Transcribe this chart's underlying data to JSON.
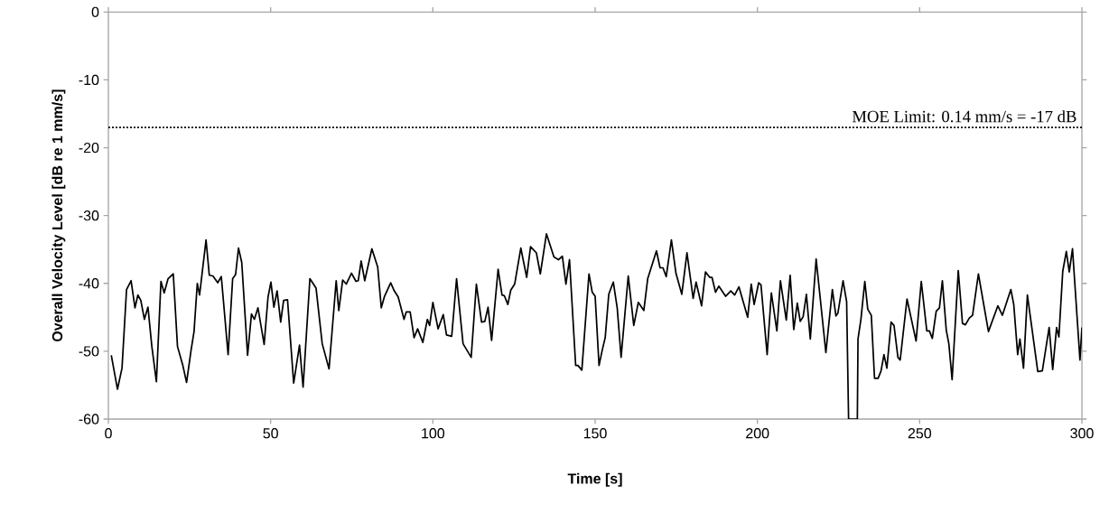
{
  "chart_data": {
    "type": "line",
    "xlabel": "Time [s]",
    "ylabel": "Overall Velocity Level [dB re 1 mm/s]",
    "xlim": [
      0,
      300
    ],
    "ylim": [
      -60,
      0
    ],
    "xticks": [
      0,
      50,
      100,
      150,
      200,
      250,
      300
    ],
    "yticks": [
      -60,
      -50,
      -40,
      -30,
      -20,
      -10,
      0
    ],
    "grid": false,
    "marker": "none",
    "line_style": "solid",
    "ref_lines": [
      {
        "axis": "y",
        "value": -17,
        "label": "MOE Limit: 0.14 mm/s = -17 dB",
        "color": "#000000",
        "line_style": "dotted"
      }
    ],
    "series": [
      {
        "color": "#000000",
        "x": [
          0.9,
          2.8,
          4.2,
          5.6,
          7.0,
          8.2,
          9.1,
          10.0,
          11.1,
          12.2,
          13.4,
          14.8,
          16.2,
          17.2,
          18.4,
          20.0,
          21.3,
          22.9,
          24.1,
          25.5,
          26.4,
          27.4,
          28.1,
          30.1,
          31.1,
          32.2,
          33.7,
          34.8,
          36.9,
          38.3,
          39.2,
          40.1,
          41.1,
          42.9,
          44.1,
          45.0,
          46.1,
          48.0,
          49.2,
          50.1,
          51.0,
          52.0,
          53.1,
          54.0,
          55.2,
          57.1,
          58.9,
          60.0,
          62.1,
          64.0,
          65.9,
          68.0,
          70.2,
          71.0,
          72.2,
          73.3,
          74.9,
          76.3,
          77.0,
          77.9,
          79.0,
          81.2,
          83.0,
          84.1,
          85.1,
          87.0,
          88.1,
          89.3,
          91.1,
          91.8,
          93.0,
          94.2,
          95.3,
          96.9,
          98.3,
          99.0,
          100.0,
          101.6,
          103.2,
          104.2,
          105.8,
          107.3,
          109.3,
          111.8,
          113.4,
          115.0,
          116.0,
          117.0,
          118.1,
          120.1,
          121.3,
          122.0,
          123.1,
          124.0,
          125.2,
          127.1,
          128.9,
          130.1,
          131.9,
          133.1,
          135.0,
          137.3,
          138.7,
          139.9,
          141.0,
          142.1,
          144.0,
          144.7,
          145.9,
          148.1,
          149.1,
          150.0,
          151.2,
          152.2,
          153.1,
          154.2,
          155.6,
          156.8,
          158.0,
          160.2,
          161.9,
          163.3,
          165.0,
          166.2,
          168.9,
          170.0,
          170.9,
          171.9,
          173.5,
          174.9,
          176.7,
          178.3,
          180.2,
          181.1,
          182.8,
          184.0,
          185.3,
          186.0,
          187.1,
          188.1,
          190.2,
          191.8,
          193.0,
          194.3,
          197.0,
          198.1,
          199.0,
          200.4,
          201.1,
          203.0,
          204.3,
          206.0,
          207.1,
          208.9,
          210.1,
          211.2,
          212.3,
          213.2,
          214.1,
          215.1,
          216.3,
          218.1,
          221.1,
          223.1,
          224.2,
          224.8,
          226.4,
          227.5,
          228.1,
          230.8,
          231.0,
          231.9,
          233.1,
          234.0,
          235.1,
          236.1,
          237.2,
          238.1,
          239.0,
          239.9,
          241.2,
          242.1,
          243.3,
          244.0,
          246.1,
          248.9,
          250.5,
          252.2,
          253.0,
          253.9,
          255.1,
          256.1,
          257.0,
          258.2,
          259.0,
          260.0,
          261.9,
          263.2,
          264.1,
          265.3,
          266.3,
          268.1,
          271.2,
          274.1,
          275.5,
          278.1,
          279.0,
          280.2,
          280.9,
          282.0,
          283.2,
          286.4,
          287.8,
          289.9,
          291.0,
          292.2,
          292.9,
          294.1,
          295.2,
          296.1,
          297.1,
          299.4,
          300.0
        ],
        "values": [
          -50.6,
          -55.6,
          -52.5,
          -40.9,
          -39.6,
          -43.6,
          -41.7,
          -42.5,
          -45.3,
          -43.5,
          -49.3,
          -54.5,
          -39.7,
          -41.4,
          -39.3,
          -38.6,
          -49.3,
          -52.0,
          -54.6,
          -49.8,
          -47.1,
          -40.0,
          -41.7,
          -33.6,
          -38.8,
          -38.9,
          -39.9,
          -39.0,
          -50.5,
          -39.3,
          -38.7,
          -34.8,
          -36.9,
          -50.6,
          -44.5,
          -45.3,
          -43.6,
          -49.0,
          -42.0,
          -39.8,
          -43.5,
          -41.1,
          -45.7,
          -42.5,
          -42.4,
          -54.7,
          -49.1,
          -55.3,
          -39.3,
          -40.7,
          -48.9,
          -52.6,
          -39.6,
          -44.0,
          -39.5,
          -40.1,
          -38.5,
          -39.7,
          -39.6,
          -36.7,
          -39.6,
          -34.9,
          -37.6,
          -43.6,
          -41.9,
          -39.9,
          -41.1,
          -42.0,
          -45.3,
          -44.2,
          -44.2,
          -48.0,
          -46.7,
          -48.7,
          -45.3,
          -46.2,
          -42.8,
          -46.7,
          -44.6,
          -47.6,
          -47.8,
          -39.3,
          -48.9,
          -50.9,
          -40.1,
          -45.7,
          -45.6,
          -43.5,
          -48.4,
          -37.9,
          -41.7,
          -41.8,
          -43.1,
          -41.0,
          -40.1,
          -34.8,
          -39.1,
          -34.6,
          -35.5,
          -38.6,
          -32.7,
          -36.1,
          -36.5,
          -36.0,
          -40.1,
          -36.5,
          -52.1,
          -52.1,
          -52.8,
          -38.6,
          -41.3,
          -41.9,
          -52.1,
          -49.8,
          -48.0,
          -41.6,
          -39.8,
          -43.6,
          -50.9,
          -38.9,
          -46.2,
          -42.8,
          -44.0,
          -39.3,
          -35.2,
          -37.7,
          -37.7,
          -39.0,
          -33.6,
          -38.5,
          -41.6,
          -35.5,
          -42.2,
          -39.8,
          -43.3,
          -38.3,
          -39.1,
          -39.1,
          -41.3,
          -40.4,
          -41.9,
          -41.1,
          -41.7,
          -40.5,
          -45.0,
          -40.1,
          -43.1,
          -39.9,
          -40.2,
          -50.5,
          -41.4,
          -47.0,
          -39.6,
          -45.4,
          -38.8,
          -46.8,
          -42.9,
          -45.6,
          -44.9,
          -41.6,
          -48.2,
          -36.4,
          -50.2,
          -40.9,
          -44.8,
          -44.4,
          -39.6,
          -42.7,
          -60,
          -60,
          -48.2,
          -45.3,
          -39.7,
          -43.8,
          -44.7,
          -54.0,
          -54.0,
          -52.9,
          -50.5,
          -52.5,
          -45.7,
          -46.2,
          -50.9,
          -51.3,
          -42.3,
          -48.5,
          -39.7,
          -47.0,
          -47.0,
          -48.1,
          -44.1,
          -43.6,
          -39.6,
          -46.9,
          -48.9,
          -54.2,
          -38.1,
          -45.9,
          -46.1,
          -45.1,
          -44.7,
          -38.6,
          -47.1,
          -43.3,
          -44.7,
          -40.9,
          -43.1,
          -50.5,
          -48.2,
          -52.5,
          -41.7,
          -53.0,
          -52.9,
          -46.5,
          -52.7,
          -46.5,
          -47.9,
          -38.2,
          -35.3,
          -38.3,
          -34.9,
          -51.3,
          -46.5
        ]
      }
    ]
  }
}
